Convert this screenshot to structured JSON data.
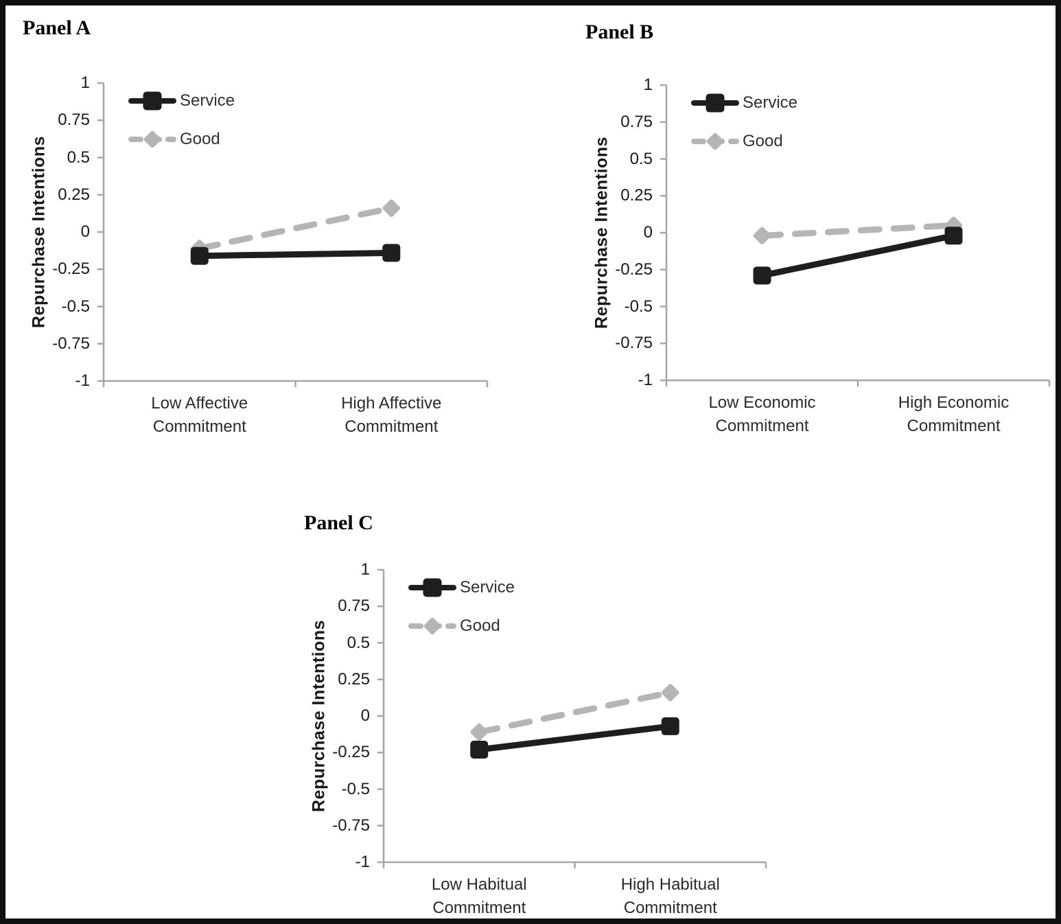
{
  "figure": {
    "border_color": "#101010",
    "background": "#ffffff",
    "axis_color": "#a6a6a6",
    "tick_label_color": "#1a1a1a",
    "legend_entries": [
      "Service",
      "Good"
    ]
  },
  "chart_data": [
    {
      "type": "line",
      "title": "Panel A",
      "ylabel": "Repurchase Intentions",
      "ylim": [
        -1,
        1
      ],
      "y_tick_labels": [
        "1",
        "0.75",
        "0.5",
        "0.25",
        "0",
        "-0.25",
        "-0.5",
        "-0.75",
        "-1"
      ],
      "categories": [
        "Low Affective\nCommitment",
        "High Affective\nCommitment"
      ],
      "series": [
        {
          "name": "Service",
          "values": [
            -0.16,
            -0.14
          ],
          "color": "#1e1e1e",
          "line_style": "solid",
          "marker": "square"
        },
        {
          "name": "Good",
          "values": [
            -0.11,
            0.16
          ],
          "color": "#b5b5b5",
          "line_style": "dashed",
          "marker": "diamond"
        }
      ],
      "legend_position": "top-left",
      "grid": false
    },
    {
      "type": "line",
      "title": "Panel B",
      "ylabel": "Repurchase Intentions",
      "ylim": [
        -1,
        1
      ],
      "y_tick_labels": [
        "1",
        "0.75",
        "0.5",
        "0.25",
        "0",
        "-0.25",
        "-0.5",
        "-0.75",
        "-1"
      ],
      "categories": [
        "Low Economic\nCommitment",
        "High Economic\nCommitment"
      ],
      "series": [
        {
          "name": "Service",
          "values": [
            -0.29,
            -0.02
          ],
          "color": "#1e1e1e",
          "line_style": "solid",
          "marker": "square"
        },
        {
          "name": "Good",
          "values": [
            -0.02,
            0.05
          ],
          "color": "#b5b5b5",
          "line_style": "dashed",
          "marker": "diamond"
        }
      ],
      "legend_position": "top-left",
      "grid": false
    },
    {
      "type": "line",
      "title": "Panel C",
      "ylabel": "Repurchase Intentions",
      "ylim": [
        -1,
        1
      ],
      "y_tick_labels": [
        "1",
        "0.75",
        "0.5",
        "0.25",
        "0",
        "-0.25",
        "-0.5",
        "-0.75",
        "-1"
      ],
      "categories": [
        "Low Habitual\nCommitment",
        "High Habitual\nCommitment"
      ],
      "series": [
        {
          "name": "Service",
          "values": [
            -0.23,
            -0.07
          ],
          "color": "#1e1e1e",
          "line_style": "solid",
          "marker": "square"
        },
        {
          "name": "Good",
          "values": [
            -0.11,
            0.16
          ],
          "color": "#b5b5b5",
          "line_style": "dashed",
          "marker": "diamond"
        }
      ],
      "legend_position": "top-left",
      "grid": false
    }
  ]
}
